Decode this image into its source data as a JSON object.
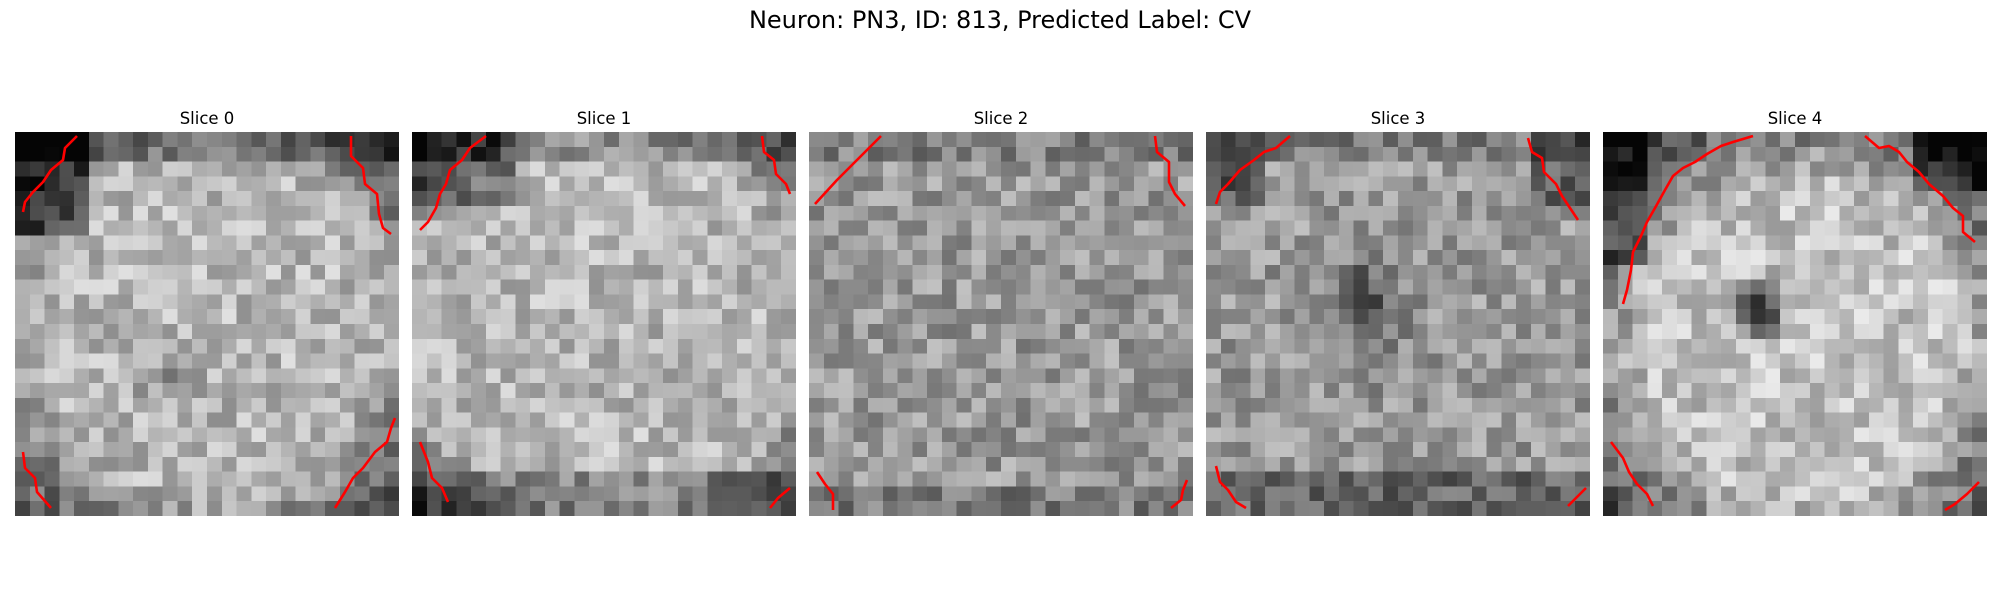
{
  "figure": {
    "title": "Neuron: PN3, ID: 813, Predicted Label: CV"
  },
  "panels": [
    {
      "label": "Slice 0"
    },
    {
      "label": "Slice 1"
    },
    {
      "label": "Slice 2"
    },
    {
      "label": "Slice 3"
    },
    {
      "label": "Slice 4"
    }
  ],
  "colors": {
    "contour": "#ff0000",
    "colormap": "grayscale"
  }
}
